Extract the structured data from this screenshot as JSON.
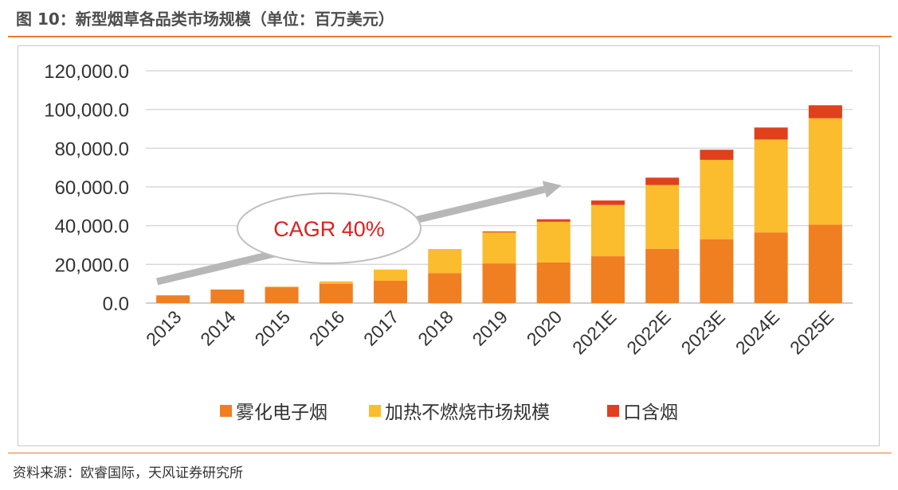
{
  "figure": {
    "title": "图 10：新型烟草各品类市场规模（单位：百万美元）",
    "source": "资料来源：欧睿国际，天风证券研究所"
  },
  "chart_data": {
    "type": "bar",
    "stacked": true,
    "categories": [
      "2013",
      "2014",
      "2015",
      "2016",
      "2017",
      "2018",
      "2019",
      "2020",
      "2021E",
      "2022E",
      "2023E",
      "2024E",
      "2025E"
    ],
    "series": [
      {
        "name": "雾化电子烟",
        "color": "#f07f22",
        "values": [
          4000,
          7000,
          8200,
          10000,
          11500,
          15500,
          20500,
          21000,
          24200,
          28000,
          33000,
          36500,
          40500
        ]
      },
      {
        "name": "加热不燃烧市场规模",
        "color": "#fbbc2e",
        "values": [
          0,
          0,
          300,
          1200,
          5800,
          12000,
          16000,
          21000,
          26500,
          33000,
          41000,
          48000,
          55000
        ]
      },
      {
        "name": "口含烟",
        "color": "#e0401c",
        "values": [
          0,
          0,
          0,
          0,
          0,
          200,
          500,
          1300,
          2300,
          3800,
          5200,
          6200,
          6700
        ]
      }
    ],
    "ylim": [
      0,
      120000
    ],
    "yticks": [
      0,
      20000,
      40000,
      60000,
      80000,
      100000,
      120000
    ],
    "ytick_labels": [
      "0.0",
      "20,000.0",
      "40,000.0",
      "60,000.0",
      "80,000.0",
      "100,000.0",
      "120,000.0"
    ],
    "grid": true,
    "legend_position": "bottom",
    "annotation": {
      "text": "CAGR 40%",
      "arrow_start_year": "2013",
      "arrow_end_year": "2020"
    }
  }
}
